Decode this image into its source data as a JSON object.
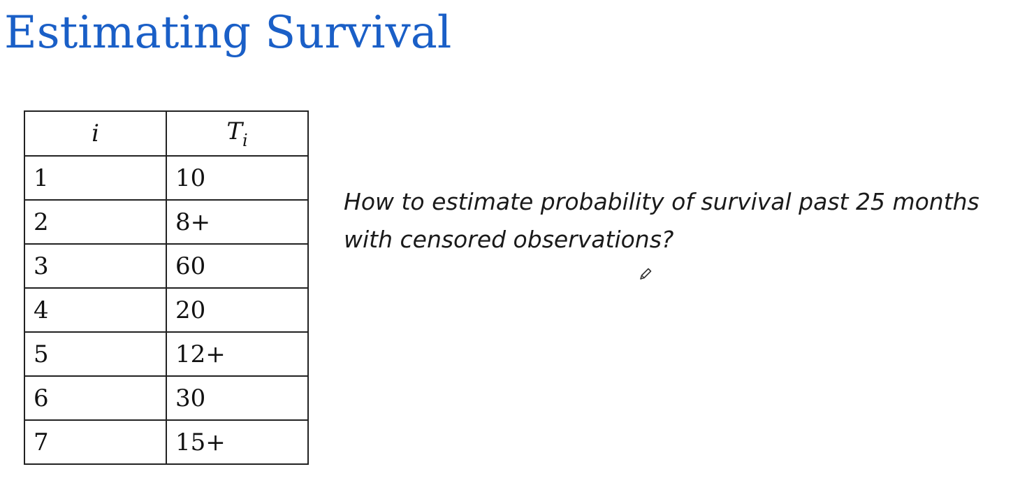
{
  "slide": {
    "title": "Estimating Survival",
    "title_color": "#1a5fc7",
    "question_line1": "How to estimate probability of survival past 25 months",
    "question_line2": "with censored observations?"
  },
  "table": {
    "headers": {
      "index": "i",
      "time_base": "T",
      "time_subscript": "i"
    },
    "rows": [
      {
        "i": "1",
        "t": "10"
      },
      {
        "i": "2",
        "t": "8+"
      },
      {
        "i": "3",
        "t": "60"
      },
      {
        "i": "4",
        "t": "20"
      },
      {
        "i": "5",
        "t": "12+"
      },
      {
        "i": "6",
        "t": "30"
      },
      {
        "i": "7",
        "t": "15+"
      }
    ]
  },
  "cursor": {
    "icon": "pen-cursor-icon"
  }
}
